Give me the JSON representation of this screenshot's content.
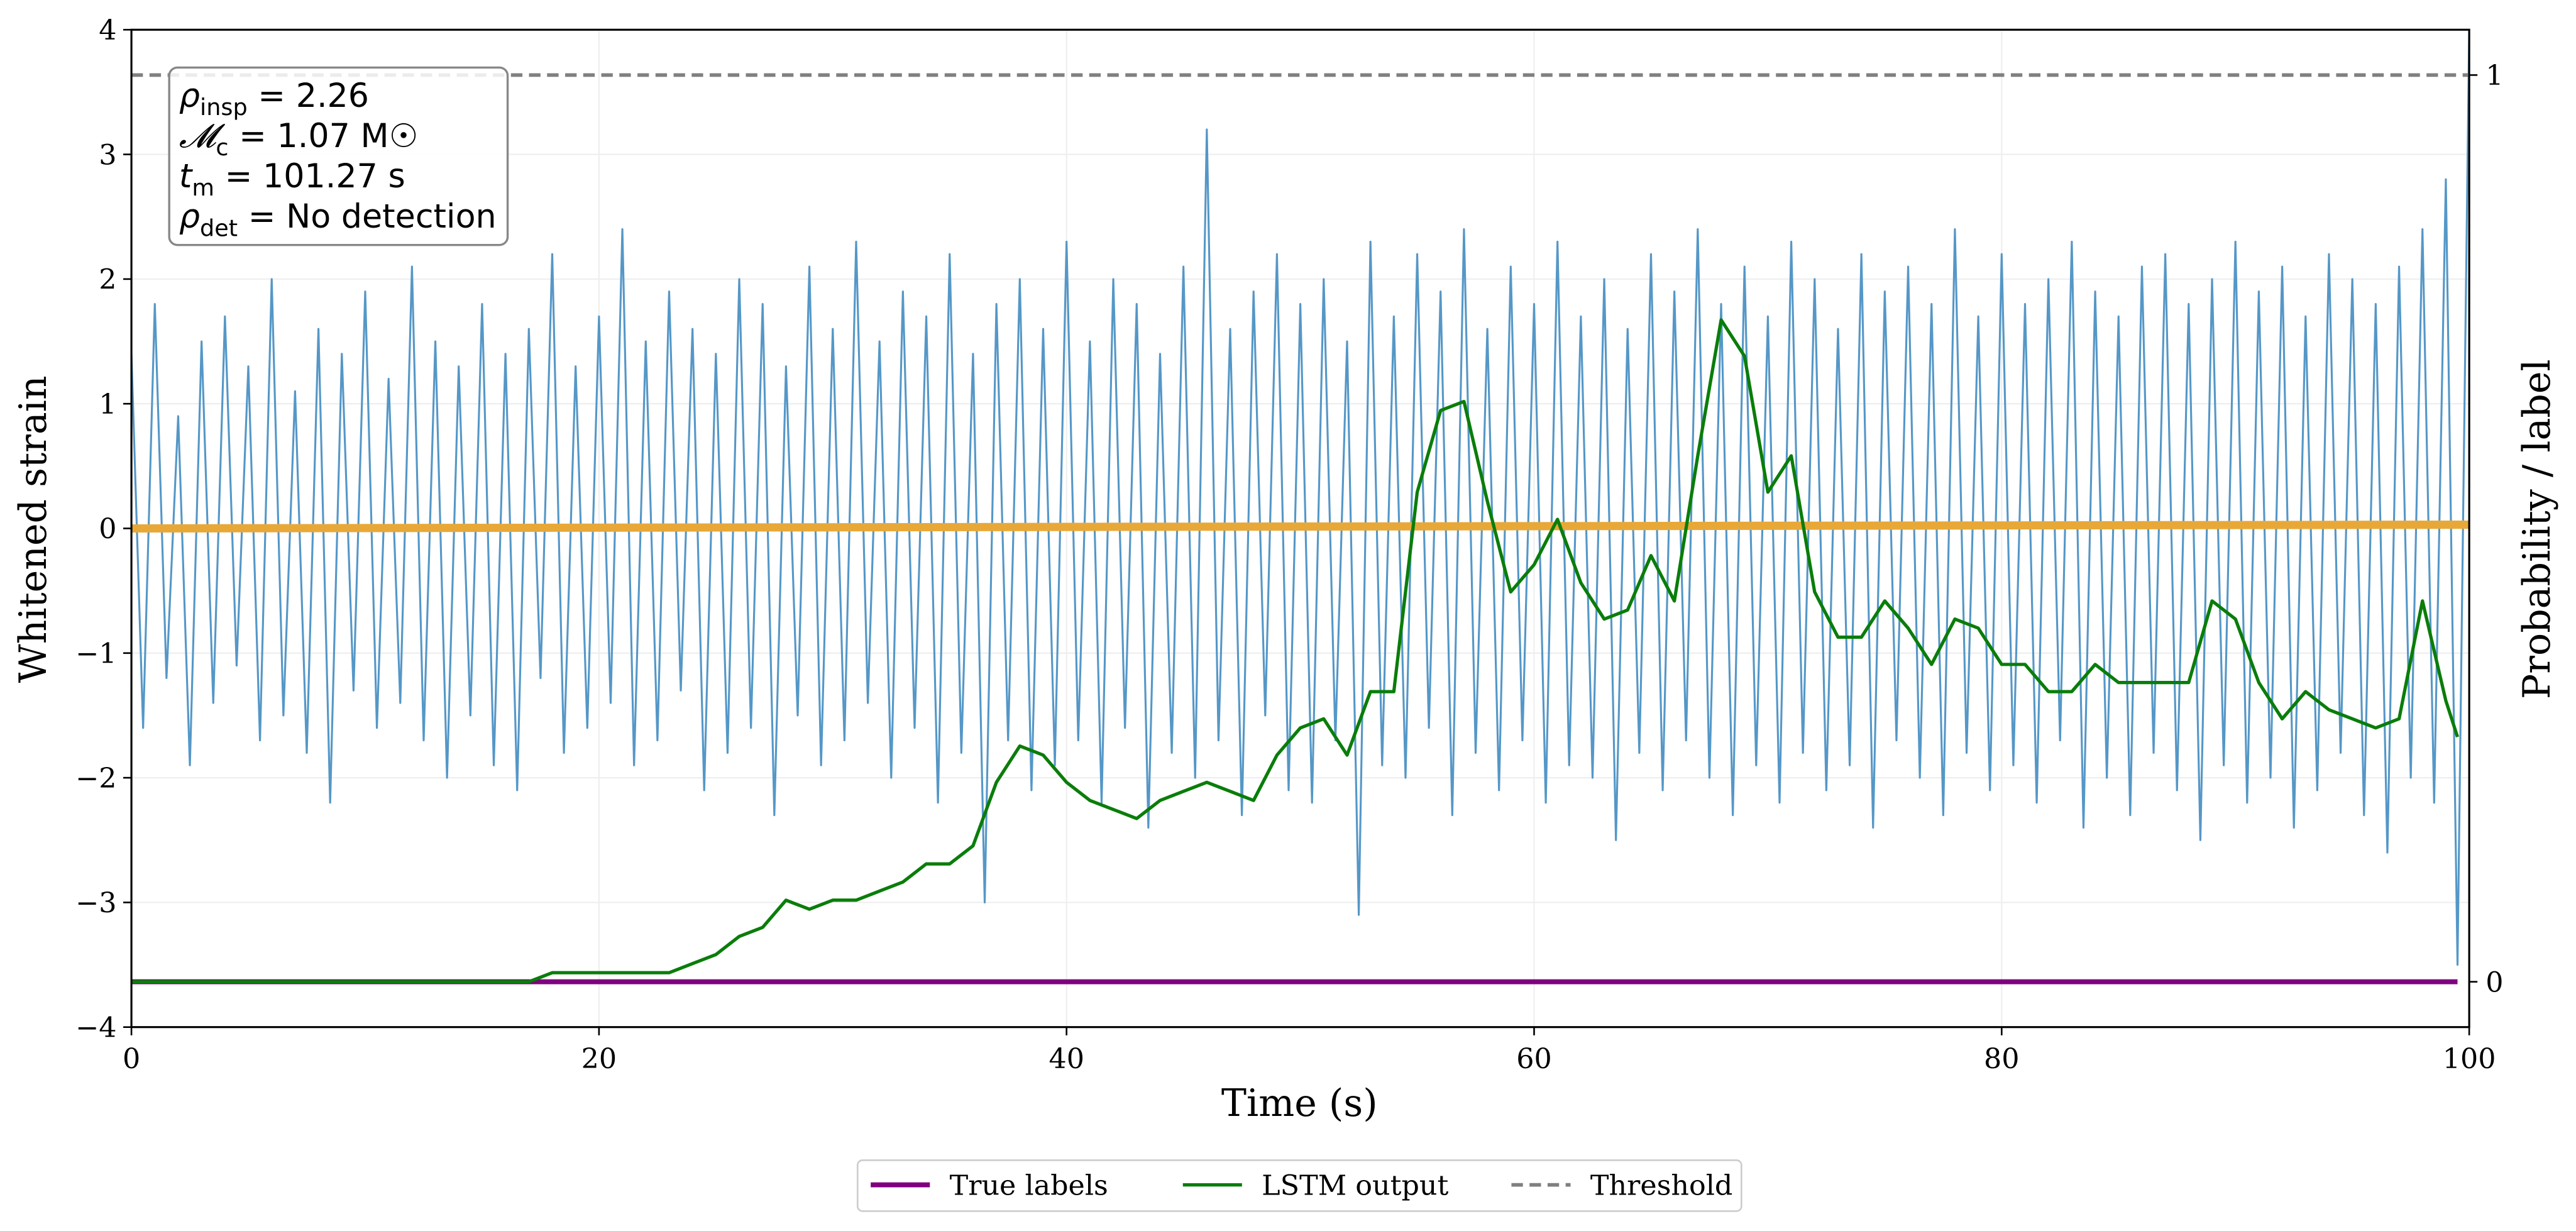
{
  "chart_data": {
    "type": "line",
    "xlabel": "Time (s)",
    "ylabel": "Whitened strain",
    "y2label": "Probability / label",
    "xlim": [
      0,
      100
    ],
    "xticks": [
      0,
      20,
      40,
      60,
      80,
      100
    ],
    "ylim": [
      -4,
      4
    ],
    "yticks": [
      {
        "value": -4,
        "label": "−4"
      },
      {
        "value": -3,
        "label": "−3"
      },
      {
        "value": -2,
        "label": "−2"
      },
      {
        "value": -1,
        "label": "−1"
      },
      0,
      1,
      2,
      3,
      4
    ],
    "y2lim": [
      -0.05,
      1.05
    ],
    "y2ticks": [
      0,
      1
    ],
    "grid": true,
    "legend": "bottom",
    "annotation": [
      {
        "main": "ρ",
        "sub": "insp",
        "rest": " = 2.26"
      },
      {
        "main": "𝓜",
        "sub": "c",
        "rest": " = 1.07 M☉"
      },
      {
        "main": "t",
        "sub": "m",
        "rest": " = 101.27 s"
      },
      {
        "main": "ρ",
        "sub": "det",
        "rest": " = No detection"
      }
    ],
    "series": [
      {
        "color": "#5597c7",
        "axis": "y",
        "width": 1.2,
        "x": [
          0,
          0.5,
          1,
          1.5,
          2,
          2.5,
          3,
          3.5,
          4,
          4.5,
          5,
          5.5,
          6,
          6.5,
          7,
          7.5,
          8,
          8.5,
          9,
          9.5,
          10,
          10.5,
          11,
          11.5,
          12,
          12.5,
          13,
          13.5,
          14,
          14.5,
          15,
          15.5,
          16,
          16.5,
          17,
          17.5,
          18,
          18.5,
          19,
          19.5,
          20,
          20.5,
          21,
          21.5,
          22,
          22.5,
          23,
          23.5,
          24,
          24.5,
          25,
          25.5,
          26,
          26.5,
          27,
          27.5,
          28,
          28.5,
          29,
          29.5,
          30,
          30.5,
          31,
          31.5,
          32,
          32.5,
          33,
          33.5,
          34,
          34.5,
          35,
          35.5,
          36,
          36.5,
          37,
          37.5,
          38,
          38.5,
          39,
          39.5,
          40,
          40.5,
          41,
          41.5,
          42,
          42.5,
          43,
          43.5,
          44,
          44.5,
          45,
          45.5,
          46,
          46.5,
          47,
          47.5,
          48,
          48.5,
          49,
          49.5,
          50,
          50.5,
          51,
          51.5,
          52,
          52.5,
          53,
          53.5,
          54,
          54.5,
          55,
          55.5,
          56,
          56.5,
          57,
          57.5,
          58,
          58.5,
          59,
          59.5,
          60,
          60.5,
          61,
          61.5,
          62,
          62.5,
          63,
          63.5,
          64,
          64.5,
          65,
          65.5,
          66,
          66.5,
          67,
          67.5,
          68,
          68.5,
          69,
          69.5,
          70,
          70.5,
          71,
          71.5,
          72,
          72.5,
          73,
          73.5,
          74,
          74.5,
          75,
          75.5,
          76,
          76.5,
          77,
          77.5,
          78,
          78.5,
          79,
          79.5,
          80,
          80.5,
          81,
          81.5,
          82,
          82.5,
          83,
          83.5,
          84,
          84.5,
          85,
          85.5,
          86,
          86.5,
          87,
          87.5,
          88,
          88.5,
          89,
          89.5,
          90,
          90.5,
          91,
          91.5,
          92,
          92.5,
          93,
          93.5,
          94,
          94.5,
          95,
          95.5,
          96,
          96.5,
          97,
          97.5,
          98,
          98.5,
          99,
          99.5,
          100
        ],
        "values": [
          1.4,
          -1.6,
          1.8,
          -1.2,
          0.9,
          -1.9,
          1.5,
          -1.4,
          1.7,
          -1.1,
          1.3,
          -1.7,
          2.0,
          -1.5,
          1.1,
          -1.8,
          1.6,
          -2.2,
          1.4,
          -1.3,
          1.9,
          -1.6,
          1.2,
          -1.4,
          2.1,
          -1.7,
          1.5,
          -2.0,
          1.3,
          -1.5,
          1.8,
          -1.9,
          1.4,
          -2.1,
          1.6,
          -1.2,
          2.2,
          -1.8,
          1.3,
          -1.6,
          1.7,
          -1.4,
          2.4,
          -1.9,
          1.5,
          -1.7,
          1.9,
          -1.3,
          1.6,
          -2.1,
          1.4,
          -1.8,
          2.0,
          -1.6,
          1.8,
          -2.3,
          1.3,
          -1.5,
          2.1,
          -1.9,
          1.6,
          -1.7,
          2.3,
          -1.4,
          1.5,
          -2.0,
          1.9,
          -1.6,
          1.7,
          -2.2,
          2.2,
          -1.8,
          1.4,
          -3.0,
          1.8,
          -1.7,
          2.0,
          -2.1,
          1.6,
          -1.9,
          2.3,
          -1.7,
          1.5,
          -2.2,
          2.0,
          -1.6,
          1.8,
          -2.4,
          1.4,
          -1.8,
          2.1,
          -2.0,
          3.2,
          -1.7,
          1.6,
          -2.3,
          1.9,
          -1.5,
          2.2,
          -2.1,
          1.8,
          -2.2,
          2.0,
          -1.7,
          1.5,
          -3.1,
          2.3,
          -1.9,
          1.7,
          -2.0,
          2.2,
          -1.6,
          1.9,
          -2.3,
          2.4,
          -1.8,
          1.6,
          -2.1,
          2.1,
          -1.7,
          1.8,
          -2.2,
          2.3,
          -1.9,
          1.7,
          -2.0,
          2.0,
          -2.5,
          1.6,
          -1.8,
          2.2,
          -2.1,
          1.9,
          -1.7,
          2.4,
          -2.0,
          1.8,
          -2.3,
          2.1,
          -1.9,
          1.7,
          -2.2,
          2.3,
          -1.8,
          2.0,
          -2.1,
          1.6,
          -1.9,
          2.2,
          -2.4,
          1.9,
          -1.7,
          2.1,
          -2.0,
          1.8,
          -2.3,
          2.4,
          -1.8,
          1.7,
          -2.1,
          2.2,
          -1.9,
          1.8,
          -2.2,
          2.0,
          -1.7,
          2.3,
          -2.4,
          1.9,
          -2.0,
          1.7,
          -2.3,
          2.1,
          -1.8,
          2.2,
          -2.1,
          1.8,
          -2.5,
          2.0,
          -1.9,
          2.3,
          -2.2,
          1.9,
          -2.0,
          2.1,
          -2.4,
          1.7,
          -2.1,
          2.2,
          -1.8,
          2.0,
          -2.3,
          1.8,
          -2.6,
          2.1,
          -2.0,
          2.4,
          -2.2,
          2.8,
          -3.5,
          4.0
        ]
      },
      {
        "color": "#e8a838",
        "axis": "y",
        "width": 5,
        "x": [
          0,
          100
        ],
        "values": [
          0,
          0.03
        ]
      },
      {
        "name": "True labels",
        "color": "#800080",
        "axis": "y2",
        "width": 3,
        "x": [
          0,
          99.5
        ],
        "values": [
          0,
          0
        ]
      },
      {
        "name": "LSTM output",
        "color": "#0a7d0a",
        "axis": "y2",
        "width": 2,
        "x": [
          0,
          1,
          2,
          3,
          4,
          5,
          6,
          7,
          8,
          9,
          10,
          11,
          12,
          13,
          14,
          15,
          16,
          17,
          18,
          19,
          20,
          21,
          22,
          23,
          24,
          25,
          26,
          27,
          28,
          29,
          30,
          31,
          32,
          33,
          34,
          35,
          36,
          37,
          38,
          39,
          40,
          41,
          42,
          43,
          44,
          45,
          46,
          47,
          48,
          49,
          50,
          51,
          52,
          53,
          54,
          55,
          56,
          57,
          58,
          59,
          60,
          61,
          62,
          63,
          64,
          65,
          66,
          67,
          68,
          69,
          70,
          71,
          72,
          73,
          74,
          75,
          76,
          77,
          78,
          79,
          80,
          81,
          82,
          83,
          84,
          85,
          86,
          87,
          88,
          89,
          90,
          91,
          92,
          93,
          94,
          95,
          96,
          97,
          98,
          99,
          99.5
        ],
        "values": [
          0,
          0,
          0,
          0,
          0,
          0,
          0,
          0,
          0,
          0,
          0,
          0,
          0,
          0,
          0,
          0,
          0,
          0,
          0.01,
          0.01,
          0.01,
          0.01,
          0.01,
          0.01,
          0.02,
          0.03,
          0.05,
          0.06,
          0.09,
          0.08,
          0.09,
          0.09,
          0.1,
          0.11,
          0.13,
          0.13,
          0.15,
          0.22,
          0.26,
          0.25,
          0.22,
          0.2,
          0.19,
          0.18,
          0.2,
          0.21,
          0.22,
          0.21,
          0.2,
          0.25,
          0.28,
          0.29,
          0.25,
          0.32,
          0.32,
          0.54,
          0.63,
          0.64,
          0.53,
          0.43,
          0.46,
          0.51,
          0.44,
          0.4,
          0.41,
          0.47,
          0.42,
          0.58,
          0.73,
          0.69,
          0.54,
          0.58,
          0.43,
          0.38,
          0.38,
          0.42,
          0.39,
          0.35,
          0.4,
          0.39,
          0.35,
          0.35,
          0.32,
          0.32,
          0.35,
          0.33,
          0.33,
          0.33,
          0.33,
          0.42,
          0.4,
          0.33,
          0.29,
          0.32,
          0.3,
          0.29,
          0.28,
          0.29,
          0.42,
          0.31,
          0.27
        ]
      },
      {
        "name": "Threshold",
        "color": "#808080",
        "axis": "y2",
        "width": 2.2,
        "dash": true,
        "x": [
          0,
          100
        ],
        "values": [
          1,
          1
        ]
      }
    ]
  }
}
